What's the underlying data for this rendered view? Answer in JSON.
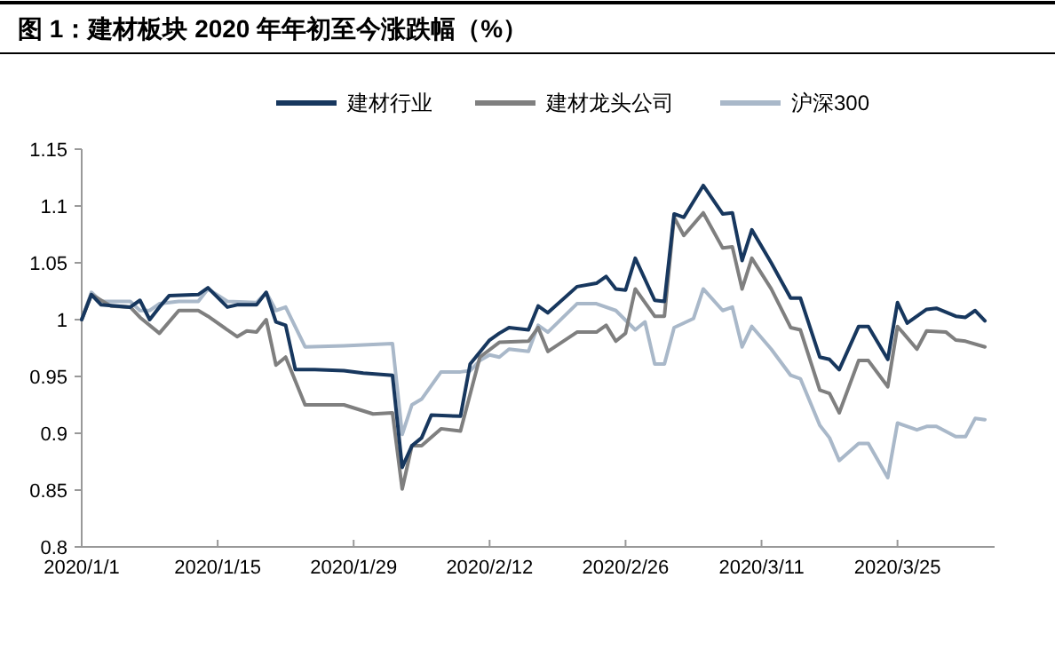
{
  "chart_data": {
    "type": "line",
    "title": "图 1：建材板块 2020 年年初至今涨跌幅（%）",
    "xlim": [
      "2020-01-01",
      "2020-04-04"
    ],
    "xticks": [
      {
        "value": "2020-01-01",
        "label": "2020/1/1"
      },
      {
        "value": "2020-01-15",
        "label": "2020/1/15"
      },
      {
        "value": "2020-01-29",
        "label": "2020/1/29"
      },
      {
        "value": "2020-02-12",
        "label": "2020/2/12"
      },
      {
        "value": "2020-02-26",
        "label": "2020/2/26"
      },
      {
        "value": "2020-03-11",
        "label": "2020/3/11"
      },
      {
        "value": "2020-03-25",
        "label": "2020/3/25"
      }
    ],
    "ylim": [
      0.8,
      1.15
    ],
    "yticks": [
      0.8,
      0.85,
      0.9,
      0.95,
      1,
      1.05,
      1.1,
      1.15
    ],
    "legend": "top",
    "series": [
      {
        "name": "建材行业",
        "color": "#17375e",
        "x": [
          "2020-01-01",
          "2020-01-02",
          "2020-01-03",
          "2020-01-06",
          "2020-01-07",
          "2020-01-08",
          "2020-01-09",
          "2020-01-10",
          "2020-01-13",
          "2020-01-14",
          "2020-01-16",
          "2020-01-17",
          "2020-01-19",
          "2020-01-20",
          "2020-01-21",
          "2020-01-22",
          "2020-01-23",
          "2020-01-25",
          "2020-01-28",
          "2020-01-30",
          "2020-02-02",
          "2020-02-03",
          "2020-02-04",
          "2020-02-05",
          "2020-02-06",
          "2020-02-09",
          "2020-02-10",
          "2020-02-12",
          "2020-02-13",
          "2020-02-14",
          "2020-02-16",
          "2020-02-17",
          "2020-02-18",
          "2020-02-21",
          "2020-02-23",
          "2020-02-24",
          "2020-02-25",
          "2020-02-26",
          "2020-02-27",
          "2020-02-29",
          "2020-03-01",
          "2020-03-02",
          "2020-03-03",
          "2020-03-05",
          "2020-03-07",
          "2020-03-08",
          "2020-03-09",
          "2020-03-10",
          "2020-03-12",
          "2020-03-14",
          "2020-03-15",
          "2020-03-17",
          "2020-03-18",
          "2020-03-19",
          "2020-03-21",
          "2020-03-22",
          "2020-03-24",
          "2020-03-25",
          "2020-03-26",
          "2020-03-28",
          "2020-03-29",
          "2020-03-31",
          "2020-04-01",
          "2020-04-02",
          "2020-04-03"
        ],
        "values": [
          1.0,
          1.022,
          1.013,
          1.011,
          1.017,
          1.0,
          1.011,
          1.021,
          1.022,
          1.028,
          1.011,
          1.013,
          1.013,
          1.024,
          0.998,
          0.995,
          0.956,
          0.956,
          0.955,
          0.953,
          0.951,
          0.87,
          0.889,
          0.896,
          0.916,
          0.915,
          0.961,
          0.982,
          0.988,
          0.993,
          0.991,
          1.012,
          1.006,
          1.029,
          1.032,
          1.038,
          1.027,
          1.026,
          1.054,
          1.017,
          1.016,
          1.093,
          1.09,
          1.118,
          1.093,
          1.094,
          1.052,
          1.079,
          1.05,
          1.019,
          1.019,
          0.967,
          0.965,
          0.956,
          0.994,
          0.994,
          0.965,
          1.015,
          0.997,
          1.009,
          1.01,
          1.003,
          1.002,
          1.008,
          0.999
        ]
      },
      {
        "name": "建材龙头公司",
        "color": "#7f7f7f",
        "x": [
          "2020-01-01",
          "2020-01-02",
          "2020-01-04",
          "2020-01-06",
          "2020-01-07",
          "2020-01-09",
          "2020-01-11",
          "2020-01-13",
          "2020-01-14",
          "2020-01-17",
          "2020-01-18",
          "2020-01-19",
          "2020-01-20",
          "2020-01-21",
          "2020-01-22",
          "2020-01-24",
          "2020-01-28",
          "2020-01-31",
          "2020-02-02",
          "2020-02-03",
          "2020-02-04",
          "2020-02-05",
          "2020-02-07",
          "2020-02-09",
          "2020-02-11",
          "2020-02-13",
          "2020-02-16",
          "2020-02-17",
          "2020-02-18",
          "2020-02-21",
          "2020-02-23",
          "2020-02-24",
          "2020-02-25",
          "2020-02-26",
          "2020-02-27",
          "2020-02-29",
          "2020-03-01",
          "2020-03-02",
          "2020-03-03",
          "2020-03-05",
          "2020-03-07",
          "2020-03-08",
          "2020-03-09",
          "2020-03-10",
          "2020-03-12",
          "2020-03-14",
          "2020-03-15",
          "2020-03-17",
          "2020-03-18",
          "2020-03-19",
          "2020-03-21",
          "2020-03-22",
          "2020-03-24",
          "2020-03-25",
          "2020-03-27",
          "2020-03-28",
          "2020-03-30",
          "2020-03-31",
          "2020-04-01",
          "2020-04-03"
        ],
        "values": [
          1.0,
          1.022,
          1.012,
          1.011,
          1.002,
          0.988,
          1.008,
          1.008,
          1.003,
          0.985,
          0.99,
          0.989,
          1.0,
          0.96,
          0.967,
          0.925,
          0.925,
          0.917,
          0.918,
          0.851,
          0.889,
          0.889,
          0.904,
          0.902,
          0.967,
          0.98,
          0.981,
          0.993,
          0.972,
          0.989,
          0.989,
          0.995,
          0.981,
          0.988,
          1.027,
          1.003,
          1.003,
          1.09,
          1.074,
          1.094,
          1.063,
          1.064,
          1.027,
          1.054,
          1.027,
          0.993,
          0.991,
          0.938,
          0.935,
          0.918,
          0.964,
          0.964,
          0.941,
          0.994,
          0.974,
          0.99,
          0.989,
          0.982,
          0.981,
          0.976
        ]
      },
      {
        "name": "沪深300",
        "color": "#a9b8c9",
        "x": [
          "2020-01-01",
          "2020-01-02",
          "2020-01-03",
          "2020-01-06",
          "2020-01-07",
          "2020-01-08",
          "2020-01-09",
          "2020-01-11",
          "2020-01-13",
          "2020-01-14",
          "2020-01-16",
          "2020-01-19",
          "2020-01-20",
          "2020-01-21",
          "2020-01-22",
          "2020-01-24",
          "2020-01-28",
          "2020-02-02",
          "2020-02-03",
          "2020-02-04",
          "2020-02-05",
          "2020-02-07",
          "2020-02-09",
          "2020-02-10",
          "2020-02-11",
          "2020-02-12",
          "2020-02-13",
          "2020-02-14",
          "2020-02-16",
          "2020-02-17",
          "2020-02-18",
          "2020-02-21",
          "2020-02-23",
          "2020-02-25",
          "2020-02-27",
          "2020-02-28",
          "2020-02-29",
          "2020-03-01",
          "2020-03-02",
          "2020-03-04",
          "2020-03-05",
          "2020-03-07",
          "2020-03-08",
          "2020-03-09",
          "2020-03-10",
          "2020-03-12",
          "2020-03-14",
          "2020-03-15",
          "2020-03-17",
          "2020-03-18",
          "2020-03-19",
          "2020-03-21",
          "2020-03-22",
          "2020-03-24",
          "2020-03-25",
          "2020-03-27",
          "2020-03-28",
          "2020-03-29",
          "2020-03-31",
          "2020-04-01",
          "2020-04-02",
          "2020-04-03"
        ],
        "values": [
          1.0,
          1.024,
          1.016,
          1.016,
          1.008,
          1.008,
          1.014,
          1.016,
          1.016,
          1.027,
          1.016,
          1.015,
          1.024,
          1.008,
          1.011,
          0.976,
          0.977,
          0.979,
          0.899,
          0.925,
          0.93,
          0.954,
          0.954,
          0.955,
          0.964,
          0.969,
          0.967,
          0.974,
          0.972,
          0.995,
          0.989,
          1.014,
          1.014,
          1.008,
          0.991,
          0.998,
          0.961,
          0.961,
          0.993,
          1.001,
          1.027,
          1.008,
          1.011,
          0.976,
          0.994,
          0.974,
          0.951,
          0.948,
          0.907,
          0.896,
          0.876,
          0.891,
          0.891,
          0.861,
          0.909,
          0.903,
          0.906,
          0.906,
          0.897,
          0.897,
          0.913,
          0.912
        ]
      }
    ]
  }
}
